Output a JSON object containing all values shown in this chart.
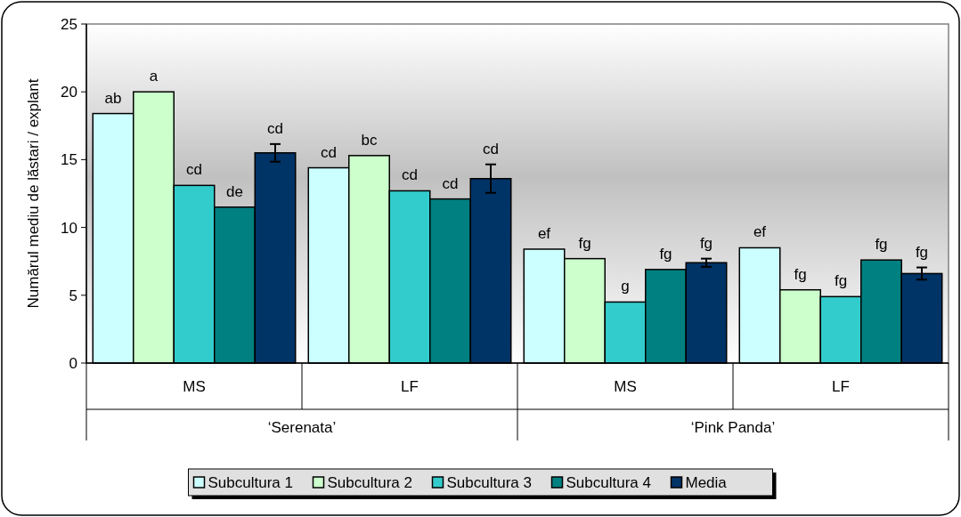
{
  "chart_data": {
    "type": "bar",
    "ylabel": "Numărul mediu de lăstari / explant",
    "categories": [
      "MS",
      "LF",
      "MS",
      "LF"
    ],
    "annotations": [
      "‘Serenata’",
      "‘Pink Panda’"
    ],
    "ylim": [
      0,
      25
    ],
    "yticks": [
      0,
      5,
      10,
      15,
      20,
      25
    ],
    "grid": false,
    "legend": "bottom",
    "series": [
      {
        "name": "Subcultura 1",
        "color": "#ccffff",
        "values": [
          18.4,
          14.4,
          8.4,
          8.5
        ],
        "value_labels": [
          "ab",
          "cd",
          "ef",
          "ef"
        ]
      },
      {
        "name": "Subcultura 2",
        "color": "#ccffcc",
        "values": [
          20.0,
          15.3,
          7.7,
          5.4
        ],
        "value_labels": [
          "a",
          "bc",
          "fg",
          "fg"
        ]
      },
      {
        "name": "Subcultura 3",
        "color": "#33cccc",
        "values": [
          13.1,
          12.7,
          4.5,
          4.9
        ],
        "value_labels": [
          "cd",
          "cd",
          "g",
          "fg"
        ]
      },
      {
        "name": "Subcultura 4",
        "color": "#008080",
        "values": [
          11.5,
          12.1,
          6.9,
          7.6
        ],
        "value_labels": [
          "de",
          "cd",
          "fg",
          "fg"
        ]
      },
      {
        "name": "Media",
        "color": "#003366",
        "values": [
          15.5,
          13.6,
          7.4,
          6.6
        ],
        "value_labels": [
          "cd",
          "cd",
          "fg",
          "fg"
        ],
        "errors": [
          0.65,
          1.05,
          0.3,
          0.45
        ]
      }
    ]
  }
}
